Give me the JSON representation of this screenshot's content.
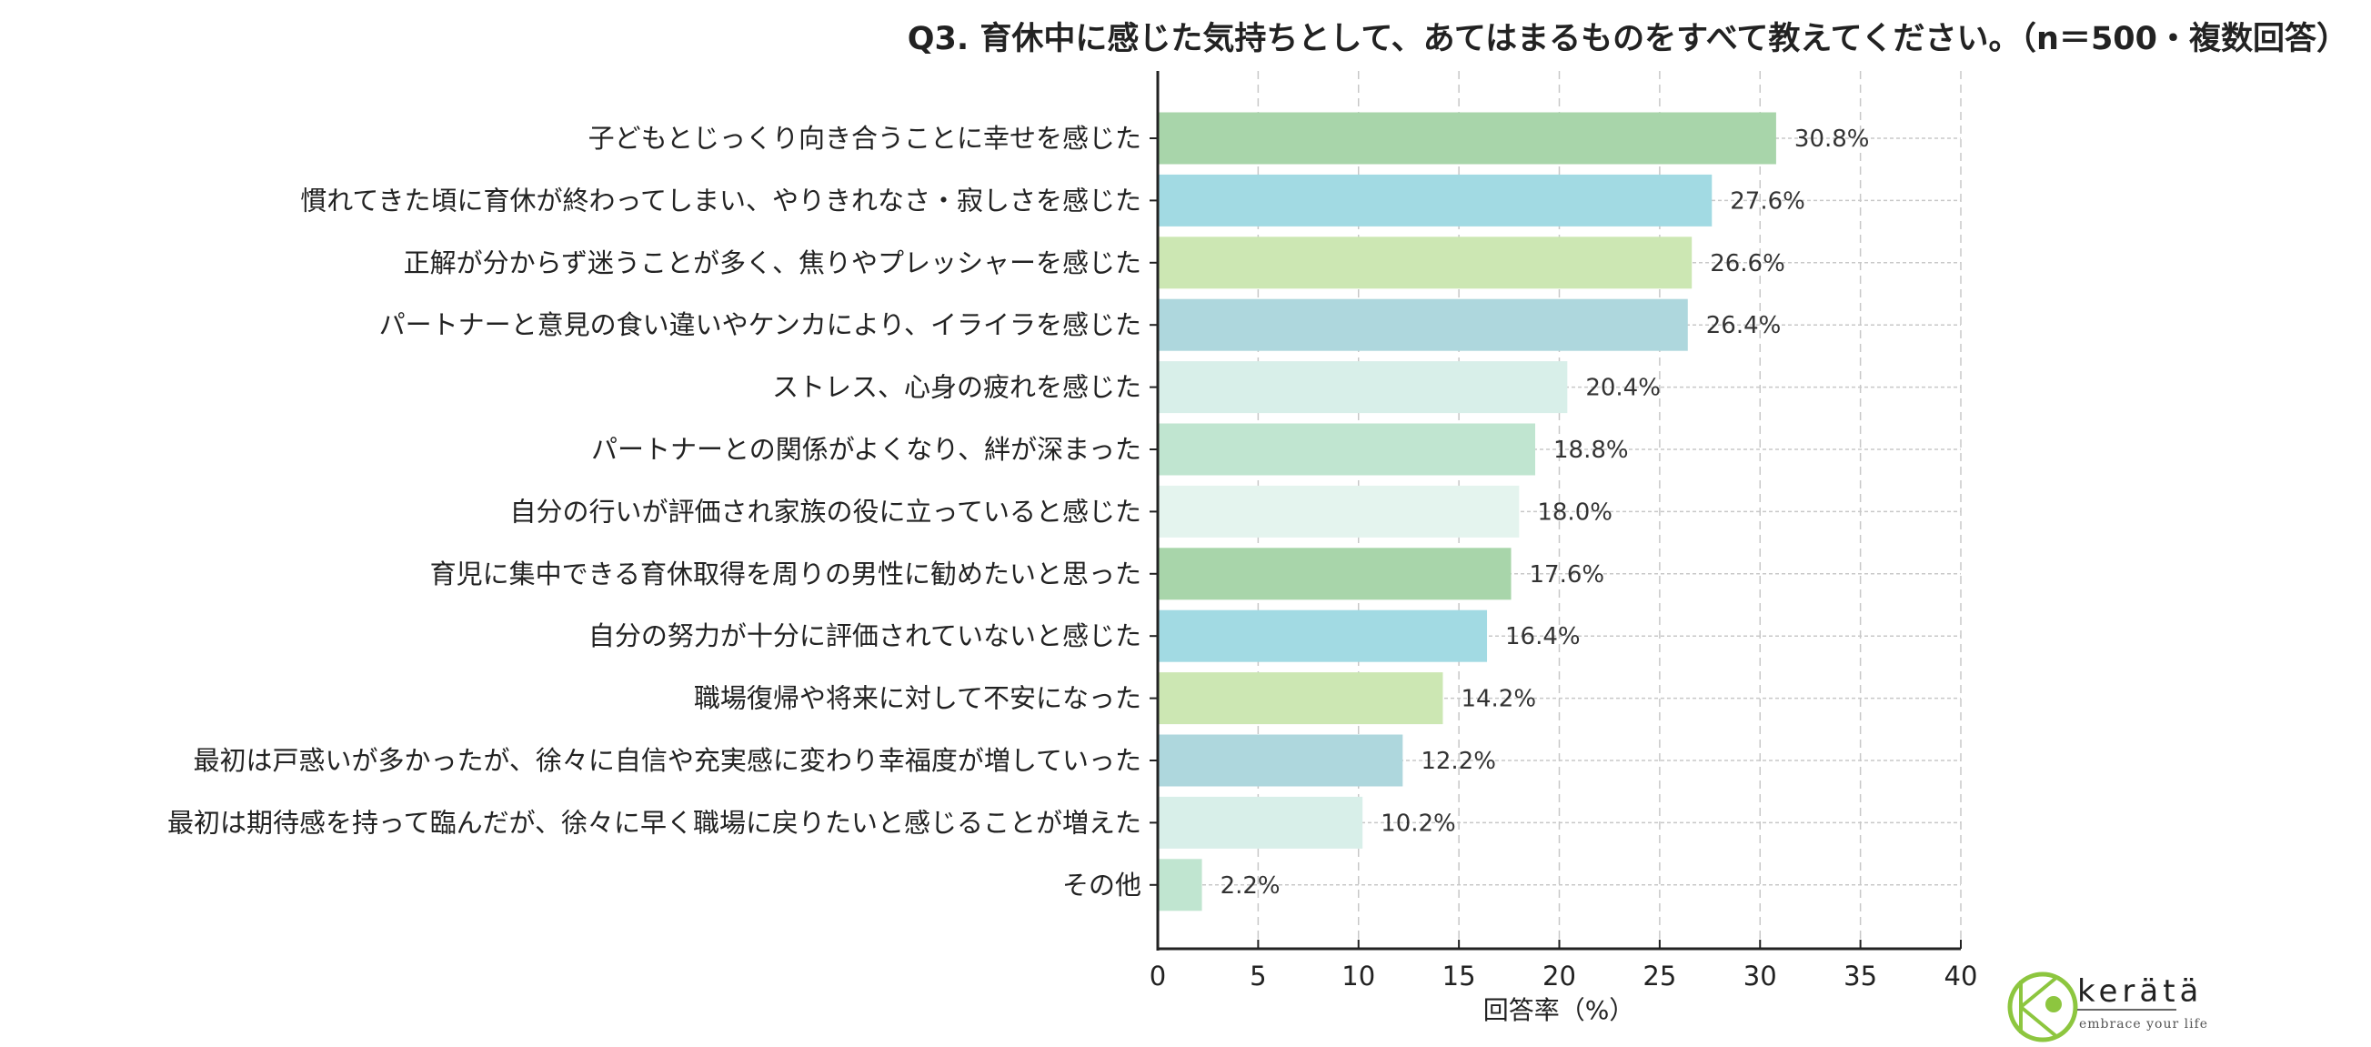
{
  "chart_data": {
    "type": "bar",
    "orientation": "horizontal",
    "title": "Q3. 育休中に感じた気持ちとして、あてはまるものをすべて教えてください。（n＝500・複数回答）",
    "xlabel": "回答率（%）",
    "ylabel": "",
    "xlim": [
      0,
      40
    ],
    "xticks": [
      0,
      5,
      10,
      15,
      20,
      25,
      30,
      35,
      40
    ],
    "grid": true,
    "categories": [
      "子どもとじっくり向き合うことに幸せを感じた",
      "慣れてきた頃に育休が終わってしまい、やりきれなさ・寂しさを感じた",
      "正解が分からず迷うことが多く、焦りやプレッシャーを感じた",
      "パートナーと意見の食い違いやケンカにより、イライラを感じた",
      "ストレス、心身の疲れを感じた",
      "パートナーとの関係がよくなり、絆が深まった",
      "自分の行いが評価され家族の役に立っていると感じた",
      "育児に集中できる育休取得を周りの男性に勧めたいと思った",
      "自分の努力が十分に評価されていないと感じた",
      "職場復帰や将来に対して不安になった",
      "最初は戸惑いが多かったが、徐々に自信や充実感に変わり幸福度が増していった",
      "最初は期待感を持って臨んだが、徐々に早く職場に戻りたいと感じることが増えた",
      "その他"
    ],
    "values": [
      30.8,
      27.6,
      26.6,
      26.4,
      20.4,
      18.8,
      18.0,
      17.6,
      16.4,
      14.2,
      12.2,
      10.2,
      2.2
    ],
    "value_labels": [
      "30.8%",
      "27.6%",
      "26.6%",
      "26.4%",
      "20.4%",
      "18.8%",
      "18.0%",
      "17.6%",
      "16.4%",
      "14.2%",
      "12.2%",
      "10.2%",
      "2.2%"
    ],
    "colors": [
      "#a8d5aa",
      "#a2dae3",
      "#cce7b3",
      "#aed7dd",
      "#d8efe9",
      "#c0e5d0",
      "#e4f4ee",
      "#a8d5aa",
      "#a2dae3",
      "#cce7b3",
      "#aed7dd",
      "#d8efe9",
      "#c0e5d0"
    ]
  },
  "logo": {
    "name": "kerätä",
    "tagline": "embrace your life",
    "color": "#8dc63f"
  }
}
